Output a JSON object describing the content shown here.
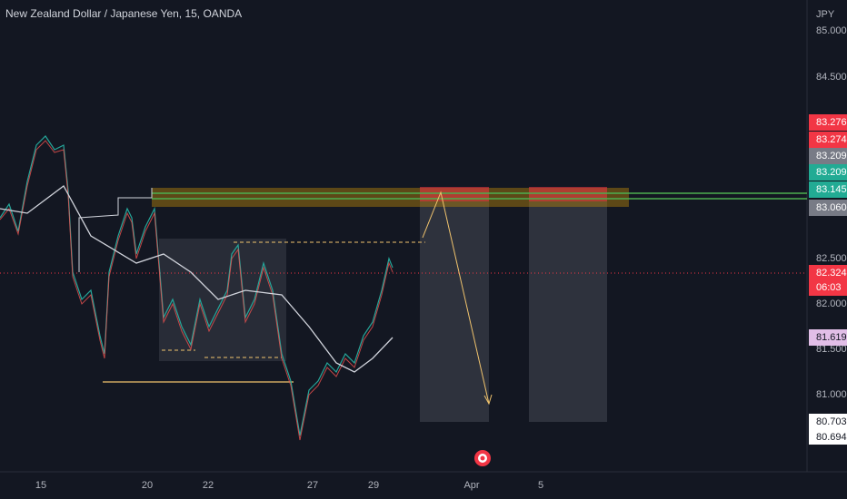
{
  "header": {
    "title": "New Zealand Dollar / Japanese Yen, 15, OANDA"
  },
  "price_axis": {
    "currency": "JPY",
    "labels": [
      "85.000",
      "84.500",
      "82.500",
      "82.000",
      "81.500",
      "81.000"
    ]
  },
  "badges": [
    {
      "text": "83.276",
      "color": "#f23645"
    },
    {
      "text": "83.274",
      "color": "#f23645"
    },
    {
      "text": "83.209",
      "color": "#787b86"
    },
    {
      "text": "83.209",
      "color": "#22ab94"
    },
    {
      "text": "83.145",
      "color": "#22ab94"
    },
    {
      "text": "83.060",
      "color": "#787b86"
    }
  ],
  "last_price": {
    "text": "82.324",
    "countdown": "06:03"
  },
  "ma_badge": {
    "text": "81.619"
  },
  "low_badges": [
    "80.703",
    "80.694"
  ],
  "time_axis": {
    "labels": [
      "15",
      "20",
      "22",
      "27",
      "29",
      "Apr",
      "5"
    ]
  }
}
